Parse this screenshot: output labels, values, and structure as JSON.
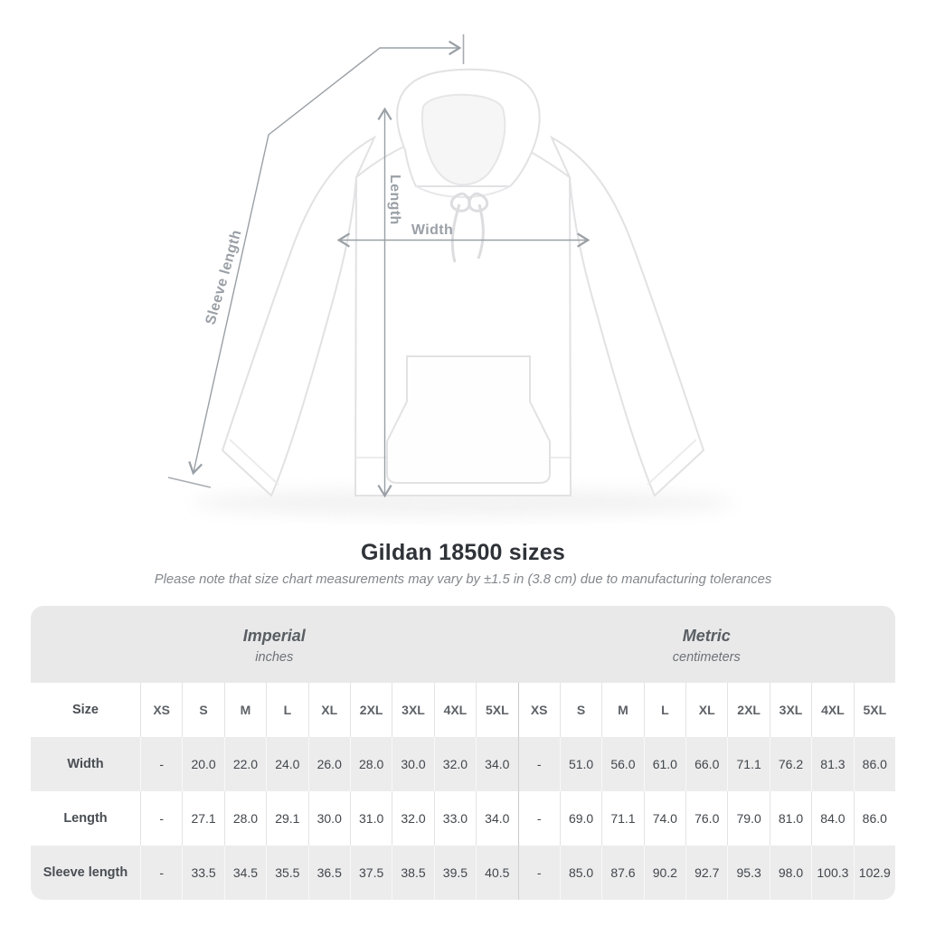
{
  "diagram": {
    "length_label": "Length",
    "width_label": "Width",
    "sleeve_label": "Sleeve length"
  },
  "title": "Gildan 18500 sizes",
  "subtitle": "Please note that size chart measurements may vary by ±1.5 in (3.8 cm) due to manufacturing tolerances",
  "table": {
    "size_label": "Size",
    "unit_groups": [
      {
        "name": "Imperial",
        "unit": "inches"
      },
      {
        "name": "Metric",
        "unit": "centimeters"
      }
    ],
    "sizes": [
      "XS",
      "S",
      "M",
      "L",
      "XL",
      "2XL",
      "3XL",
      "4XL",
      "5XL"
    ],
    "rows": [
      {
        "label": "Width",
        "imperial": [
          "-",
          "20.0",
          "22.0",
          "24.0",
          "26.0",
          "28.0",
          "30.0",
          "32.0",
          "34.0"
        ],
        "metric": [
          "-",
          "51.0",
          "56.0",
          "61.0",
          "66.0",
          "71.1",
          "76.2",
          "81.3",
          "86.0"
        ]
      },
      {
        "label": "Length",
        "imperial": [
          "-",
          "27.1",
          "28.0",
          "29.1",
          "30.0",
          "31.0",
          "32.0",
          "33.0",
          "34.0"
        ],
        "metric": [
          "-",
          "69.0",
          "71.1",
          "74.0",
          "76.0",
          "79.0",
          "81.0",
          "84.0",
          "86.0"
        ]
      },
      {
        "label": "Sleeve length",
        "imperial": [
          "-",
          "33.5",
          "34.5",
          "35.5",
          "36.5",
          "37.5",
          "38.5",
          "39.5",
          "40.5"
        ],
        "metric": [
          "-",
          "85.0",
          "87.6",
          "90.2",
          "92.7",
          "95.3",
          "98.0",
          "100.3",
          "102.9"
        ]
      }
    ]
  },
  "colors": {
    "measure_gray": "#9aa0a5",
    "header_band": "#e9e9ea",
    "row_stripe": "#ececed",
    "half_divider": "#c8c8ca"
  }
}
